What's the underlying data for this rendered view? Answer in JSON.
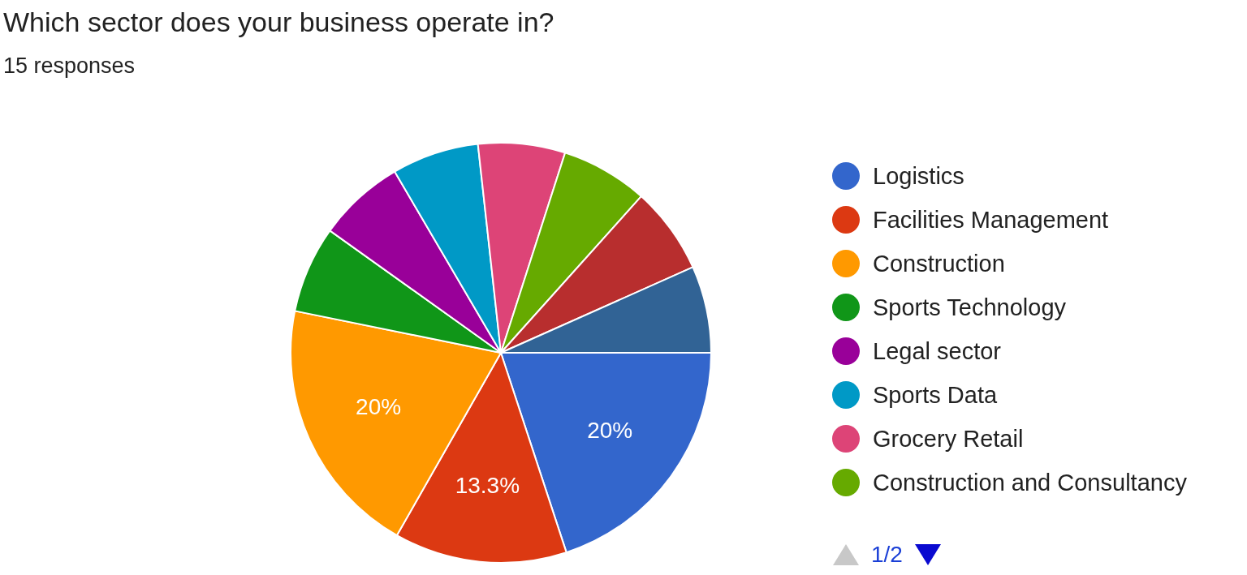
{
  "chart_data": {
    "type": "pie",
    "title": "Which sector does your business operate in?",
    "subtitle": "15 responses",
    "categories": [
      "Logistics",
      "Facilities Management",
      "Construction",
      "Sports Technology",
      "Legal sector",
      "Sports Data",
      "Grocery Retail",
      "Construction and Consultancy",
      null,
      null
    ],
    "values": [
      20,
      13.3,
      20,
      6.7,
      6.7,
      6.7,
      6.7,
      6.7,
      6.7,
      6.7
    ],
    "value_labels": [
      "20%",
      "13.3%",
      "20%",
      null,
      null,
      null,
      null,
      null,
      null,
      null
    ],
    "colors": [
      "#3366cc",
      "#dc3912",
      "#ff9900",
      "#109618",
      "#990099",
      "#0099c6",
      "#dd4477",
      "#66aa00",
      "#b82e2e",
      "#316395"
    ],
    "legend": "right",
    "annotations": [
      "1/2"
    ]
  }
}
